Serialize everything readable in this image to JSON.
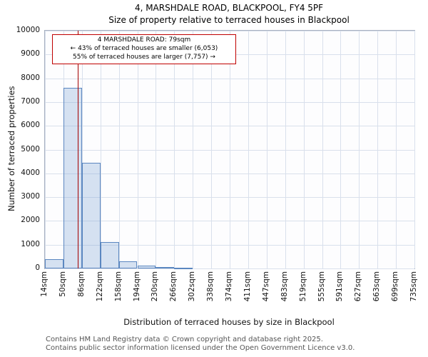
{
  "figure": {
    "background": "#ffffff"
  },
  "annotation": {
    "line1": "4 MARSHDALE ROAD: 79sqm",
    "line2": "← 43% of terraced houses are smaller (6,053)",
    "line3": "55% of terraced houses are larger (7,757) →",
    "border_color": "#c00000"
  },
  "footer": {
    "line1": "Contains HM Land Registry data © Crown copyright and database right 2025.",
    "line2": "Contains public sector information licensed under the Open Government Licence v3.0."
  },
  "chart_data": {
    "type": "bar",
    "title": "4, MARSHDALE ROAD, BLACKPOOL, FY4 5PF",
    "subtitle": "Size of property relative to terraced houses in Blackpool",
    "xlabel": "Distribution of terraced houses by size in Blackpool",
    "ylabel": "Number of terraced properties",
    "ylim": [
      0,
      10000
    ],
    "y_ticks": [
      0,
      1000,
      2000,
      3000,
      4000,
      5000,
      6000,
      7000,
      8000,
      9000,
      10000
    ],
    "bin_edges_sqm": [
      14,
      50,
      86,
      122,
      158,
      194,
      230,
      266,
      302,
      338,
      374,
      411,
      447,
      483,
      519,
      555,
      591,
      627,
      663,
      699,
      735
    ],
    "x_tick_labels": [
      "14sqm",
      "50sqm",
      "86sqm",
      "122sqm",
      "158sqm",
      "194sqm",
      "230sqm",
      "266sqm",
      "302sqm",
      "338sqm",
      "374sqm",
      "411sqm",
      "447sqm",
      "483sqm",
      "519sqm",
      "555sqm",
      "591sqm",
      "627sqm",
      "663sqm",
      "699sqm",
      "735sqm"
    ],
    "values": [
      400,
      7600,
      4450,
      1100,
      310,
      110,
      55,
      30,
      0,
      0,
      0,
      0,
      0,
      0,
      0,
      0,
      0,
      0,
      0,
      0
    ],
    "marker_value_sqm": 79,
    "marker_color": "#a40000",
    "bar_fill": "#79a1d3",
    "bar_border": "#5b87c0",
    "grid_color": "#d9e0ec",
    "grid": true,
    "legend": false
  }
}
